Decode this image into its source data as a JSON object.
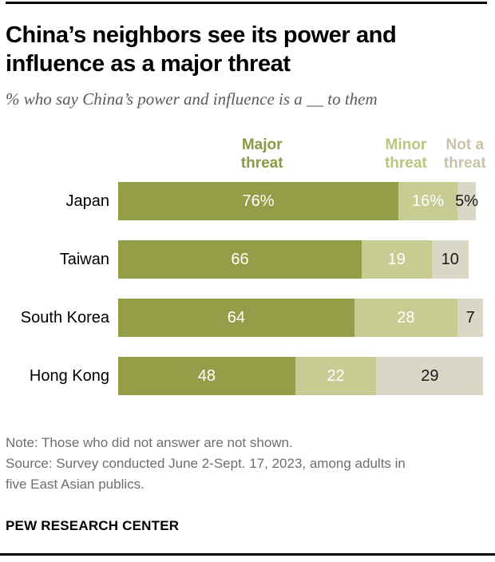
{
  "header": {
    "title_lines": [
      "China’s neighbors see its power and",
      "influence as a major threat"
    ],
    "subtitle": "% who say China’s power and influence is a __ to them"
  },
  "legend": {
    "items": [
      {
        "label": "Major threat"
      },
      {
        "label": "Minor threat"
      },
      {
        "label": "Not a threat"
      }
    ]
  },
  "chart_data": {
    "type": "bar",
    "orientation": "horizontal_stacked",
    "title": "China’s neighbors see its power and influence as a major threat",
    "subtitle": "% who say China’s power and influence is a __ to them",
    "categories": [
      "Japan",
      "Taiwan",
      "South Korea",
      "Hong Kong"
    ],
    "series": [
      {
        "name": "Major threat",
        "values": [
          76,
          66,
          64,
          48
        ]
      },
      {
        "name": "Minor threat",
        "values": [
          16,
          19,
          28,
          22
        ]
      },
      {
        "name": "Not a threat",
        "values": [
          5,
          10,
          7,
          29
        ]
      }
    ],
    "xlim": [
      0,
      100
    ],
    "grid": false,
    "legend_position": "top",
    "rows": [
      {
        "label": "Japan",
        "major": 76,
        "minor": 16,
        "nota": 5,
        "major_text": "76%",
        "minor_text": "16%",
        "nota_text": "5%"
      },
      {
        "label": "Taiwan",
        "major": 66,
        "minor": 19,
        "nota": 10,
        "major_text": "66",
        "minor_text": "19",
        "nota_text": "10"
      },
      {
        "label": "South Korea",
        "major": 64,
        "minor": 28,
        "nota": 7,
        "major_text": "64",
        "minor_text": "28",
        "nota_text": "7"
      },
      {
        "label": "Hong Kong",
        "major": 48,
        "minor": 22,
        "nota": 29,
        "major_text": "48",
        "minor_text": "22",
        "nota_text": "29"
      }
    ]
  },
  "colors": {
    "bar_major": "#949D48",
    "bar_minor": "#C6CC92",
    "bar_nota": "#DBD7C6",
    "legend_major": "#8E9744",
    "legend_minor": "#BCC47F",
    "legend_nota": "#C8C2A6",
    "value_light": "#FFFFFF",
    "value_dark": "#1A1A1A",
    "title_text": "#000000",
    "subtitle_text": "#5A5A5A",
    "footer_text": "#6E6E6E",
    "rule": "#000000"
  },
  "footer": {
    "note": "Note: Those who did not answer are not shown.",
    "source_lines": [
      "Source: Survey conducted June 2-Sept. 17, 2023, among adults in",
      "five East Asian publics."
    ],
    "brand": "PEW RESEARCH CENTER"
  }
}
